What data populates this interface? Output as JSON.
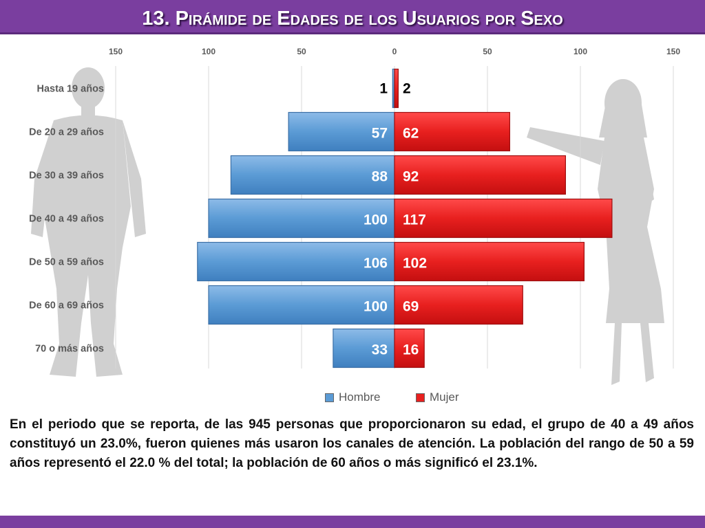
{
  "slide_title": "13. Pirámide de Edades de los Usuarios por Sexo",
  "colors": {
    "title_bar": "#7a3e9f",
    "hombre": "#5b9bd5",
    "mujer": "#e8201f",
    "silhouette": "#c8c8c8"
  },
  "chart_data": {
    "type": "bar",
    "orientation": "horizontal-butterfly",
    "categories": [
      "Hasta 19 años",
      "De 20 a 29 años",
      "De 30 a 39 años",
      "De 40 a 49 años",
      "De 50 a 59 años",
      "De 60 a 69 años",
      "70 o más años"
    ],
    "series": [
      {
        "name": "Hombre",
        "values": [
          1,
          57,
          88,
          100,
          106,
          100,
          33
        ]
      },
      {
        "name": "Mujer",
        "values": [
          2,
          62,
          92,
          117,
          102,
          69,
          16
        ]
      }
    ],
    "x_ticks_left": [
      "150",
      "100",
      "50",
      "0"
    ],
    "x_ticks_right": [
      "50",
      "100",
      "150"
    ],
    "xlim": [
      -150,
      150
    ],
    "grid": true,
    "legend": "bottom-center"
  },
  "legend": {
    "hombre": "Hombre",
    "mujer": "Mujer"
  },
  "description": "En el periodo que se reporta, de las 945 personas que proporcionaron su edad, el grupo de 40 a 49 años constituyó un 23.0%, fueron quienes más usaron los canales de atención. La población del rango de 50 a 59 años representó el 22.0 % del total; la población de 60 años o más significó el 23.1%."
}
